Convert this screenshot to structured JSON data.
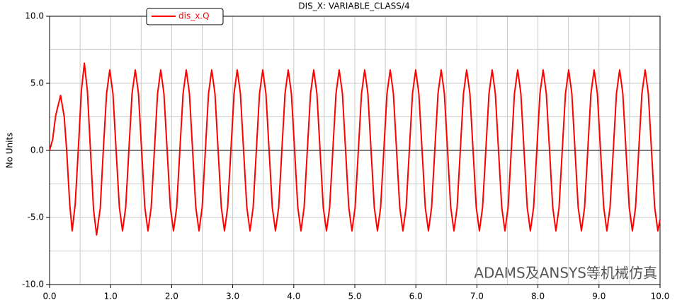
{
  "chart_data": {
    "type": "line",
    "title": "DIS_X: VARIABLE_CLASS/4",
    "ylabel": "No Units",
    "watermark": "ADAMS及ANSYS等机械仿真",
    "x": [
      0,
      0.05,
      0.1,
      0.18,
      0.24,
      0.28,
      0.33,
      0.37,
      0.42,
      0.47,
      0.52,
      0.57,
      0.62,
      0.67,
      0.72,
      0.77,
      0.83,
      0.88,
      0.934,
      0.986,
      1.038,
      1.09,
      1.143,
      1.195,
      1.247,
      1.299,
      1.351,
      1.404,
      1.456,
      1.508,
      1.56,
      1.612,
      1.665,
      1.717,
      1.769,
      1.821,
      1.873,
      1.926,
      1.978,
      2.03,
      2.082,
      2.134,
      2.187,
      2.239,
      2.291,
      2.343,
      2.395,
      2.448,
      2.5,
      2.552,
      2.604,
      2.656,
      2.709,
      2.761,
      2.813,
      2.865,
      2.917,
      2.97,
      3.022,
      3.074,
      3.126,
      3.178,
      3.231,
      3.283,
      3.335,
      3.387,
      3.439,
      3.492,
      3.544,
      3.596,
      3.648,
      3.7,
      3.753,
      3.805,
      3.857,
      3.909,
      3.961,
      4.014,
      4.066,
      4.118,
      4.17,
      4.222,
      4.275,
      4.327,
      4.379,
      4.431,
      4.483,
      4.536,
      4.588,
      4.64,
      4.692,
      4.744,
      4.797,
      4.849,
      4.901,
      4.953,
      5.005,
      5.058,
      5.11,
      5.162,
      5.214,
      5.266,
      5.319,
      5.371,
      5.423,
      5.475,
      5.527,
      5.58,
      5.632,
      5.684,
      5.736,
      5.788,
      5.841,
      5.893,
      5.945,
      5.997,
      6.049,
      6.102,
      6.154,
      6.206,
      6.258,
      6.31,
      6.363,
      6.415,
      6.467,
      6.519,
      6.571,
      6.624,
      6.676,
      6.728,
      6.78,
      6.832,
      6.885,
      6.937,
      6.989,
      7.041,
      7.093,
      7.146,
      7.198,
      7.25,
      7.302,
      7.354,
      7.407,
      7.459,
      7.511,
      7.563,
      7.615,
      7.668,
      7.72,
      7.772,
      7.824,
      7.876,
      7.929,
      7.981,
      8.033,
      8.085,
      8.137,
      8.19,
      8.242,
      8.294,
      8.346,
      8.398,
      8.451,
      8.503,
      8.555,
      8.607,
      8.659,
      8.712,
      8.764,
      8.816,
      8.868,
      8.92,
      8.973,
      9.025,
      9.077,
      9.129,
      9.181,
      9.234,
      9.286,
      9.338,
      9.39,
      9.442,
      9.495,
      9.547,
      9.599,
      9.651,
      9.703,
      9.756,
      9.808,
      9.86,
      9.912,
      9.964,
      10.0
    ],
    "series": [
      {
        "name": "dis_x.Q",
        "color": "#ff0000",
        "values": [
          0,
          0.8,
          2.6,
          4.1,
          2.5,
          0,
          -4,
          -6,
          -4,
          0,
          4.4,
          6.5,
          4.4,
          0,
          -4.4,
          -6.3,
          -4.3,
          0,
          4.24,
          6,
          4.24,
          0,
          -4.24,
          -6,
          -4.24,
          0,
          4.24,
          6,
          4.24,
          0,
          -4.24,
          -6,
          -4.24,
          0,
          4.24,
          6,
          4.24,
          0,
          -4.24,
          -6,
          -4.24,
          0,
          4.24,
          6,
          4.24,
          0,
          -4.24,
          -6,
          -4.24,
          0,
          4.24,
          6,
          4.24,
          0,
          -4.24,
          -6,
          -4.24,
          0,
          4.24,
          6,
          4.24,
          0,
          -4.24,
          -6,
          -4.24,
          0,
          4.24,
          6,
          4.24,
          0,
          -4.24,
          -6,
          -4.24,
          0,
          4.24,
          6,
          4.24,
          0,
          -4.24,
          -6,
          -4.24,
          0,
          4.24,
          6,
          4.24,
          0,
          -4.24,
          -6,
          -4.24,
          0,
          4.24,
          6,
          4.24,
          0,
          -4.24,
          -6,
          -4.24,
          0,
          4.24,
          6,
          4.24,
          0,
          -4.24,
          -6,
          -4.24,
          0,
          4.24,
          6,
          4.24,
          0,
          -4.24,
          -6,
          -4.24,
          0,
          4.24,
          6,
          4.24,
          0,
          -4.24,
          -6,
          -4.24,
          0,
          4.24,
          6,
          4.24,
          0,
          -4.24,
          -6,
          -4.24,
          0,
          4.24,
          6,
          4.24,
          0,
          -4.24,
          -6,
          -4.24,
          0,
          4.24,
          6,
          4.24,
          0,
          -4.24,
          -6,
          -4.24,
          0,
          4.24,
          6,
          4.24,
          0,
          -4.24,
          -6,
          -4.24,
          0,
          4.24,
          6,
          4.24,
          0,
          -4.24,
          -6,
          -4.24,
          0,
          4.24,
          6,
          4.24,
          0,
          -4.24,
          -6,
          -4.24,
          0,
          4.24,
          6,
          4.24,
          0,
          -4.24,
          -6,
          -4.24,
          0,
          4.24,
          6,
          4.24,
          0,
          -4.24,
          -6,
          -4.24,
          0,
          4.24,
          6,
          4.24,
          0,
          -4.24,
          -6,
          -5.16
        ]
      }
    ],
    "xlim": [
      0,
      10
    ],
    "ylim": [
      -10,
      10
    ],
    "xticks": [
      {
        "value": 0,
        "label": "0.0"
      },
      {
        "value": 1,
        "label": "1.0"
      },
      {
        "value": 2,
        "label": "2.0"
      },
      {
        "value": 3,
        "label": "3.0"
      },
      {
        "value": 4,
        "label": "4.0"
      },
      {
        "value": 5,
        "label": "5.0"
      },
      {
        "value": 6,
        "label": "6.0"
      },
      {
        "value": 7,
        "label": "7.0"
      },
      {
        "value": 8,
        "label": "8.0"
      },
      {
        "value": 9,
        "label": "9.0"
      },
      {
        "value": 10,
        "label": "10.0"
      }
    ],
    "xminor": [
      0.5,
      1.5,
      2.5,
      3.5,
      4.5,
      5.5,
      6.5,
      7.5,
      8.5,
      9.5
    ],
    "yticks": [
      {
        "value": -10,
        "label": "-10.0"
      },
      {
        "value": -5,
        "label": "-5.0"
      },
      {
        "value": 0,
        "label": "0.0"
      },
      {
        "value": 5,
        "label": "5.0"
      },
      {
        "value": 10,
        "label": "10.0"
      }
    ],
    "yminor": [
      -7.5,
      -2.5,
      2.5,
      7.5
    ],
    "grid": true
  }
}
